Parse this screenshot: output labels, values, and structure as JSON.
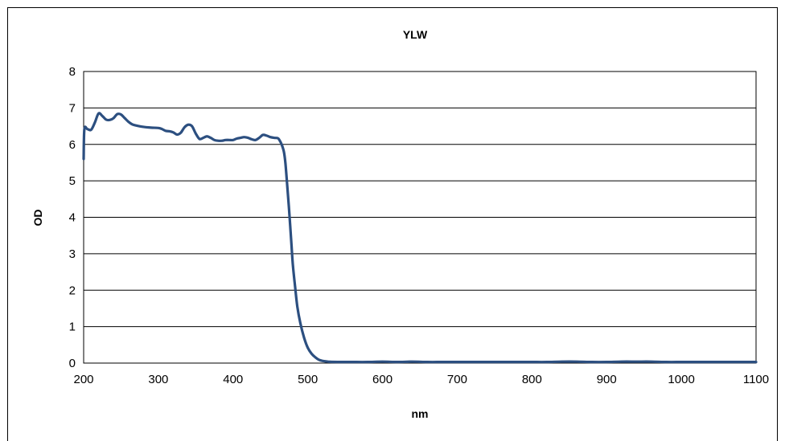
{
  "chart_data": {
    "type": "line",
    "title": "YLW",
    "xlabel": "nm",
    "ylabel": "OD",
    "xlim": [
      200,
      1100
    ],
    "ylim": [
      0,
      8
    ],
    "xticks": [
      200,
      300,
      400,
      500,
      600,
      700,
      800,
      900,
      1000,
      1100
    ],
    "yticks": [
      0,
      1,
      2,
      3,
      4,
      5,
      6,
      7,
      8
    ],
    "grid": "horizontal",
    "line_color": "#2c4f80",
    "series": [
      {
        "x": [
          200,
          201,
          205,
          210,
          215,
          220,
          225,
          230,
          235,
          240,
          245,
          250,
          255,
          260,
          265,
          270,
          280,
          290,
          300,
          305,
          310,
          315,
          320,
          325,
          330,
          335,
          340,
          345,
          350,
          355,
          360,
          365,
          370,
          375,
          380,
          385,
          390,
          395,
          400,
          405,
          410,
          415,
          420,
          425,
          430,
          435,
          440,
          445,
          450,
          455,
          460,
          462,
          465,
          468,
          470,
          472,
          475,
          478,
          480,
          483,
          486,
          490,
          495,
          500,
          505,
          510,
          515,
          520,
          525,
          530,
          540,
          550,
          560,
          580,
          600,
          620,
          640,
          660,
          680,
          700,
          720,
          740,
          760,
          780,
          800,
          820,
          840,
          860,
          880,
          900,
          920,
          940,
          960,
          980,
          1000,
          1020,
          1040,
          1060,
          1080,
          1100
        ],
        "values": [
          5.6,
          6.42,
          6.42,
          6.4,
          6.6,
          6.85,
          6.78,
          6.68,
          6.67,
          6.72,
          6.83,
          6.82,
          6.72,
          6.62,
          6.55,
          6.52,
          6.48,
          6.46,
          6.45,
          6.42,
          6.37,
          6.36,
          6.33,
          6.27,
          6.32,
          6.47,
          6.54,
          6.5,
          6.3,
          6.15,
          6.18,
          6.22,
          6.18,
          6.12,
          6.1,
          6.1,
          6.12,
          6.12,
          6.12,
          6.16,
          6.18,
          6.2,
          6.18,
          6.14,
          6.12,
          6.18,
          6.26,
          6.24,
          6.2,
          6.18,
          6.17,
          6.12,
          6.0,
          5.8,
          5.5,
          5.0,
          4.2,
          3.3,
          2.7,
          2.1,
          1.55,
          1.1,
          0.7,
          0.42,
          0.26,
          0.16,
          0.09,
          0.06,
          0.045,
          0.035,
          0.03,
          0.03,
          0.03,
          0.03,
          0.04,
          0.03,
          0.04,
          0.03,
          0.03,
          0.03,
          0.03,
          0.03,
          0.03,
          0.03,
          0.03,
          0.03,
          0.04,
          0.04,
          0.03,
          0.03,
          0.04,
          0.04,
          0.04,
          0.03,
          0.03,
          0.03,
          0.03,
          0.03,
          0.03,
          0.03
        ]
      }
    ]
  }
}
